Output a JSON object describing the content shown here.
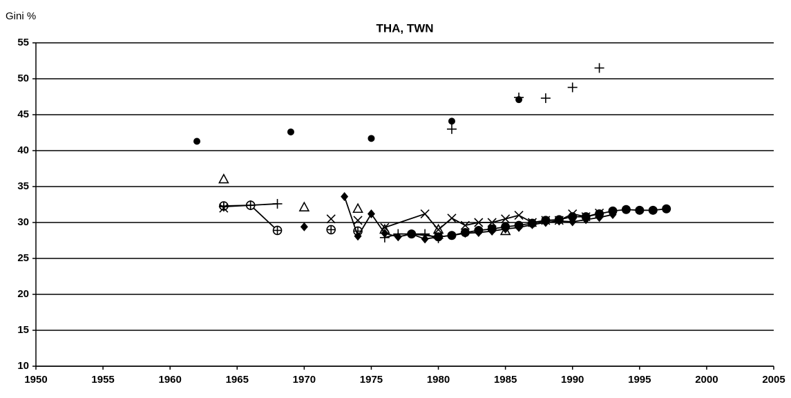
{
  "chart_data": {
    "type": "scatter",
    "title": "THA, TWN",
    "y_label": "Gini %",
    "xlim": [
      1950,
      2005
    ],
    "xticks": [
      1950,
      1955,
      1960,
      1965,
      1970,
      1975,
      1980,
      1985,
      1990,
      1995,
      2000,
      2005
    ],
    "ylim": [
      10,
      55
    ],
    "yticks": [
      10,
      15,
      20,
      25,
      30,
      35,
      40,
      45,
      50,
      55
    ],
    "grid": true,
    "series": [
      {
        "marker": "circle",
        "color": "#000000",
        "line": false,
        "x": [
          1962,
          1969,
          1975,
          1981,
          1986
        ],
        "values": [
          41.3,
          42.6,
          41.7,
          44.1,
          47.1
        ]
      },
      {
        "marker": "plus",
        "color": "#000000",
        "line": false,
        "x": [
          1981,
          1986,
          1988,
          1990,
          1992
        ],
        "values": [
          43.0,
          47.4,
          47.3,
          48.8,
          51.5
        ]
      },
      {
        "marker": "triangle",
        "color": "#000000",
        "line": false,
        "x": [
          1964,
          1970,
          1974,
          1976,
          1980,
          1985
        ],
        "values": [
          36.0,
          32.1,
          31.9,
          29.0,
          29.0,
          28.8
        ]
      },
      {
        "marker": "oplus",
        "color": "#000000",
        "line": true,
        "x": [
          1964,
          1966,
          1968
        ],
        "values": [
          32.3,
          32.4,
          28.9
        ]
      },
      {
        "marker": "oplus",
        "color": "#000000",
        "line": false,
        "x": [
          1972,
          1974
        ],
        "values": [
          29.0,
          28.8
        ]
      },
      {
        "marker": "plus",
        "color": "#000000",
        "line": true,
        "x": [
          1964,
          1966,
          1968
        ],
        "values": [
          32.2,
          32.4,
          32.6
        ]
      },
      {
        "marker": "cross",
        "color": "#000000",
        "line": false,
        "x": [
          1964,
          1972,
          1974
        ],
        "values": [
          32.0,
          30.5,
          30.3
        ]
      },
      {
        "marker": "cross",
        "color": "#000000",
        "line": true,
        "x": [
          1976,
          1979,
          1980,
          1981,
          1982,
          1983,
          1984,
          1985,
          1986,
          1987,
          1988,
          1989,
          1990,
          1991,
          1992
        ],
        "values": [
          29.3,
          31.2,
          29.0,
          30.6,
          29.6,
          30.0,
          30.0,
          30.5,
          31.0,
          30.0,
          30.3,
          30.3,
          31.2,
          30.8,
          31.3
        ]
      },
      {
        "marker": "diamond",
        "color": "#000000",
        "line": false,
        "x": [
          1970
        ],
        "values": [
          29.4
        ]
      },
      {
        "marker": "diamond",
        "color": "#000000",
        "line": true,
        "x": [
          1973,
          1974,
          1975,
          1976,
          1977,
          1978,
          1979,
          1980,
          1981,
          1982,
          1983,
          1984,
          1985,
          1986,
          1987,
          1988,
          1989,
          1990,
          1991,
          1992,
          1993
        ],
        "values": [
          33.6,
          28.1,
          31.2,
          28.5,
          28.0,
          28.4,
          27.7,
          28.0,
          28.2,
          28.5,
          28.6,
          28.8,
          29.1,
          29.3,
          29.7,
          30.0,
          30.2,
          30.1,
          30.4,
          30.7,
          31.1
        ]
      },
      {
        "marker": "bigcircle",
        "color": "#000000",
        "line": true,
        "x": [
          1978,
          1980,
          1981,
          1982,
          1983,
          1984,
          1985,
          1986,
          1987,
          1988,
          1989,
          1990,
          1991,
          1992,
          1993,
          1994,
          1995,
          1996,
          1997
        ],
        "values": [
          28.4,
          28.0,
          28.2,
          28.6,
          28.9,
          29.1,
          29.4,
          29.6,
          29.9,
          30.3,
          30.4,
          30.8,
          30.8,
          31.2,
          31.6,
          31.8,
          31.7,
          31.7,
          31.9
        ]
      },
      {
        "marker": "plus",
        "color": "#000000",
        "line": true,
        "x": [
          1976,
          1977,
          1979,
          1980
        ],
        "values": [
          27.9,
          28.4,
          28.4,
          27.8
        ]
      }
    ]
  }
}
